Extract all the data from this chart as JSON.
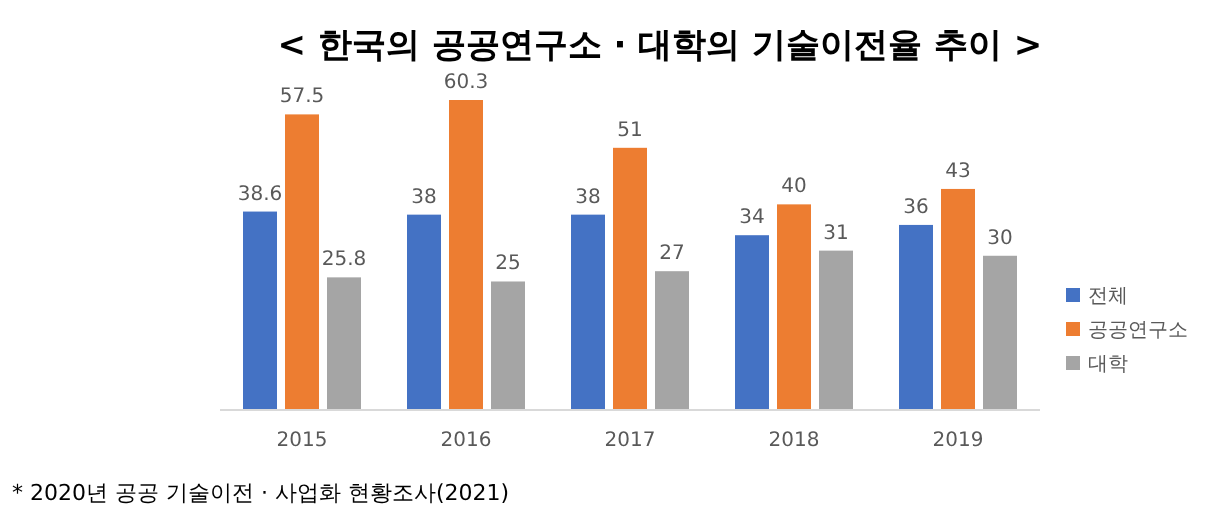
{
  "chart_data": {
    "type": "bar",
    "title": "< 한국의 공공연구소 · 대학의 기술이전율 추이 >",
    "categories": [
      "2015",
      "2016",
      "2017",
      "2018",
      "2019"
    ],
    "series": [
      {
        "name": "전체",
        "color": "#4472c4",
        "values": [
          38.6,
          38,
          38,
          34,
          36
        ]
      },
      {
        "name": "공공연구소",
        "color": "#ed7d31",
        "values": [
          57.5,
          60.3,
          51,
          40,
          43
        ]
      },
      {
        "name": "대학",
        "color": "#a5a5a5",
        "values": [
          25.8,
          25,
          27,
          31,
          30
        ]
      }
    ],
    "data_labels": true,
    "legend": "right",
    "annotations": [
      "* 2020년 공공 기술이전 · 사업화 현황조사(2021)"
    ]
  }
}
